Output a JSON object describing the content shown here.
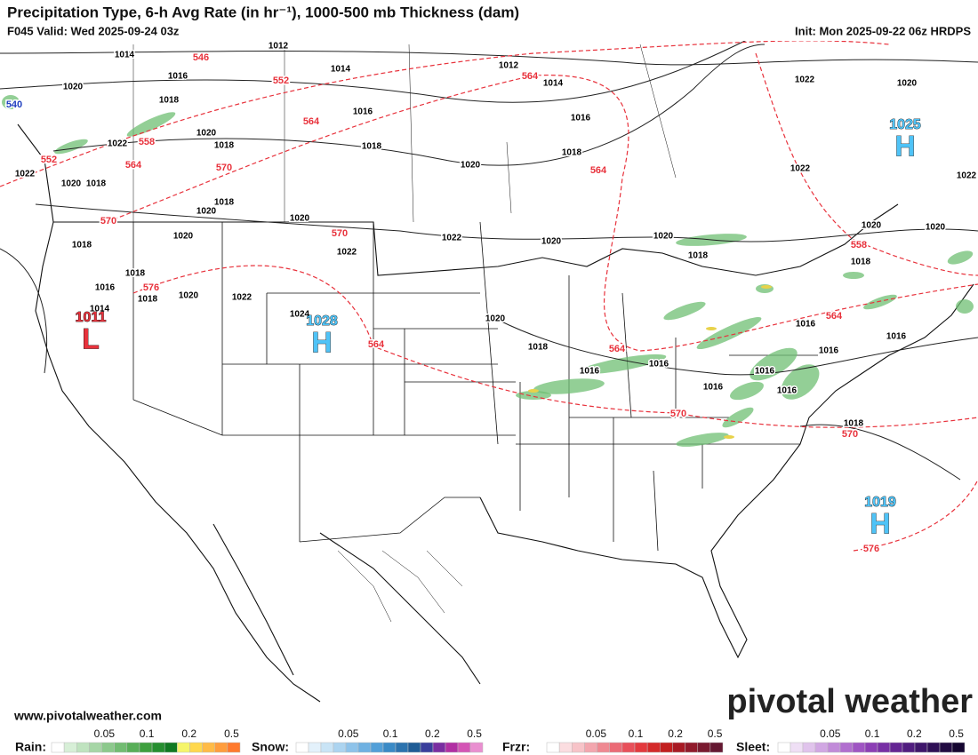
{
  "header": {
    "title": "Precipitation Type, 6-h Avg Rate (in hr⁻¹), 1000-500 mb Thickness (dam)",
    "valid": "F045 Valid: Wed 2025-09-24 03z",
    "init": "Init: Mon 2025-09-22 06z HRDPS"
  },
  "map": {
    "pressure_centers": [
      {
        "value": "1011",
        "symbol": "L"
      },
      {
        "value": "1028",
        "symbol": "H"
      },
      {
        "value": "1025",
        "symbol": "H"
      },
      {
        "value": "1019",
        "symbol": "H"
      }
    ],
    "isobar_labels": [
      "1014",
      "1012",
      "1016",
      "1018",
      "1020",
      "1014",
      "1012",
      "1014",
      "1016",
      "1016",
      "1018",
      "1018",
      "1020",
      "1022",
      "1018",
      "1022",
      "1020",
      "1018",
      "1020",
      "1018",
      "1020",
      "1022",
      "1022",
      "1020",
      "1020",
      "1018",
      "1020",
      "1022",
      "1022",
      "1022",
      "1020",
      "1020",
      "1018",
      "1020",
      "1018",
      "1016",
      "1018",
      "1018",
      "1020",
      "1022",
      "1024",
      "1020",
      "1018",
      "1016",
      "1016",
      "1016",
      "1016",
      "1016",
      "1016",
      "1016",
      "1016",
      "1018",
      "1014",
      "1020"
    ],
    "thickness_labels": [
      "546",
      "552",
      "564",
      "564",
      "558",
      "552",
      "564",
      "570",
      "570",
      "570",
      "564",
      "576",
      "564",
      "564",
      "570",
      "564",
      "558",
      "570",
      "576",
      "540"
    ]
  },
  "footer": {
    "site": "www.pivotalweather.com",
    "brand": "pivotal weather"
  },
  "legend": [
    {
      "name": "Rain:",
      "ticks": [
        "0.05",
        "0.1",
        "0.2",
        "0.5"
      ]
    },
    {
      "name": "Snow:",
      "ticks": [
        "0.05",
        "0.1",
        "0.2",
        "0.5"
      ]
    },
    {
      "name": "Frzr:",
      "ticks": [
        "0.05",
        "0.1",
        "0.2",
        "0.5"
      ]
    },
    {
      "name": "Sleet:",
      "ticks": [
        "0.05",
        "0.1",
        "0.2",
        "0.5"
      ]
    }
  ]
}
